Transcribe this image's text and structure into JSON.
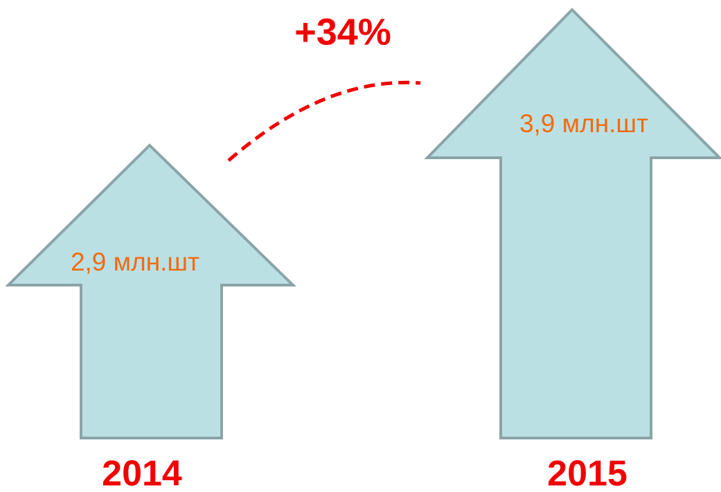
{
  "growth": {
    "label": "+34%"
  },
  "items": [
    {
      "value_label": "2,9 млн.шт",
      "year": "2014"
    },
    {
      "value_label": "3,9 млн.шт",
      "year": "2015"
    }
  ]
}
